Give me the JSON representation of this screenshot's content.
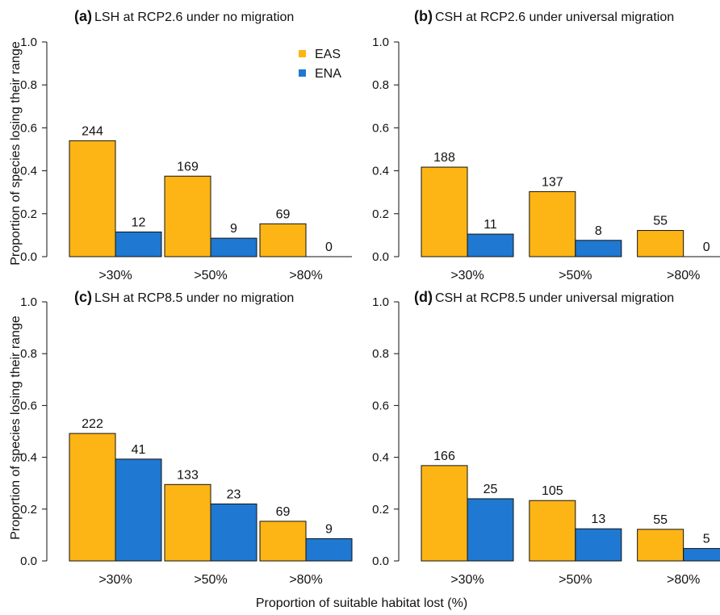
{
  "ylabel": "Proportion of species losing their range",
  "xlabel": "Proportion of suitable habitat lost (%)",
  "colors": {
    "EAS": "#fdb515",
    "ENA": "#1f78d1"
  },
  "chart_data": [
    {
      "type": "bar",
      "panel": "(a)",
      "title": "LSH at RCP2.6 under no migration",
      "categories": [
        ">30%",
        ">50%",
        ">80%"
      ],
      "series": [
        {
          "name": "EAS",
          "values": [
            0.54,
            0.375,
            0.153
          ],
          "labels": [
            "244",
            "169",
            "69"
          ]
        },
        {
          "name": "ENA",
          "values": [
            0.115,
            0.086,
            0.0
          ],
          "labels": [
            "12",
            "9",
            "0"
          ]
        }
      ],
      "ylim": [
        0,
        1.0
      ],
      "yticks": [
        "0.0",
        "0.2",
        "0.4",
        "0.6",
        "0.8",
        "1.0"
      ],
      "legend": "top-right",
      "grid": false
    },
    {
      "type": "bar",
      "panel": "(b)",
      "title": "CSH at RCP2.6 under universal migration",
      "categories": [
        ">30%",
        ">50%",
        ">80%"
      ],
      "series": [
        {
          "name": "EAS",
          "values": [
            0.417,
            0.303,
            0.122
          ],
          "labels": [
            "188",
            "137",
            "55"
          ]
        },
        {
          "name": "ENA",
          "values": [
            0.105,
            0.076,
            0.0
          ],
          "labels": [
            "11",
            "8",
            "0"
          ]
        }
      ],
      "ylim": [
        0,
        1.0
      ],
      "yticks": [
        "0.0",
        "0.2",
        "0.4",
        "0.6",
        "0.8",
        "1.0"
      ],
      "grid": false
    },
    {
      "type": "bar",
      "panel": "(c)",
      "title": "LSH at RCP8.5 under no migration",
      "categories": [
        ">30%",
        ">50%",
        ">80%"
      ],
      "series": [
        {
          "name": "EAS",
          "values": [
            0.492,
            0.295,
            0.153
          ],
          "labels": [
            "222",
            "133",
            "69"
          ]
        },
        {
          "name": "ENA",
          "values": [
            0.393,
            0.22,
            0.086
          ],
          "labels": [
            "41",
            "23",
            "9"
          ]
        }
      ],
      "ylim": [
        0,
        1.0
      ],
      "yticks": [
        "0.0",
        "0.2",
        "0.4",
        "0.6",
        "0.8",
        "1.0"
      ],
      "grid": false
    },
    {
      "type": "bar",
      "panel": "(d)",
      "title": "CSH at RCP8.5 under universal migration",
      "categories": [
        ">30%",
        ">50%",
        ">80%"
      ],
      "series": [
        {
          "name": "EAS",
          "values": [
            0.368,
            0.233,
            0.122
          ],
          "labels": [
            "166",
            "105",
            "55"
          ]
        },
        {
          "name": "ENA",
          "values": [
            0.24,
            0.124,
            0.048
          ],
          "labels": [
            "25",
            "13",
            "5"
          ]
        }
      ],
      "ylim": [
        0,
        1.0
      ],
      "yticks": [
        "0.0",
        "0.2",
        "0.4",
        "0.6",
        "0.8",
        "1.0"
      ],
      "grid": false
    }
  ]
}
